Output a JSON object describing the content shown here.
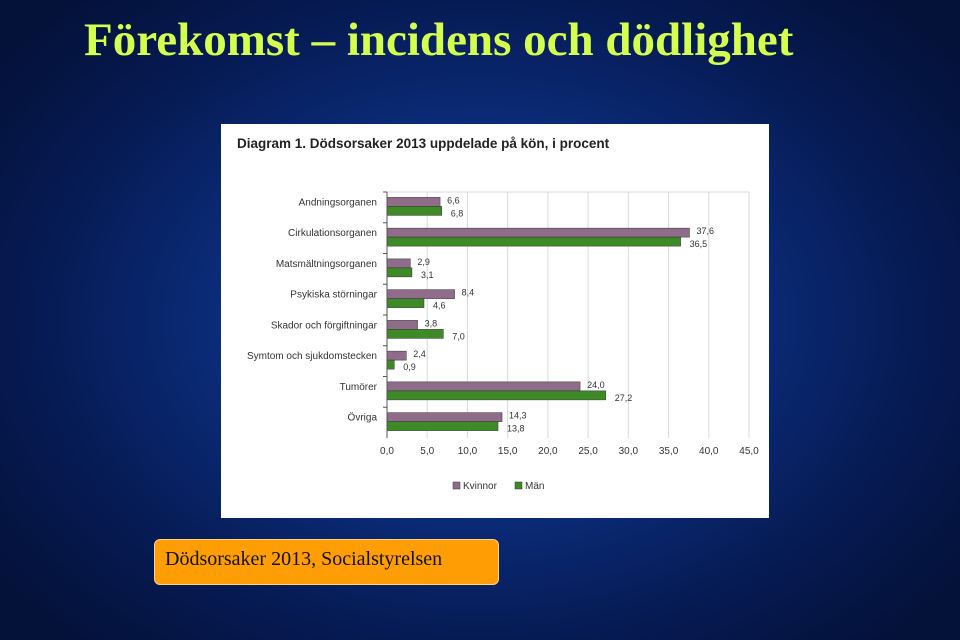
{
  "slide": {
    "title": "Förekomst – incidens och dödlighet",
    "source": "Dödsorsaker 2013, Socialstyrelsen"
  },
  "colors": {
    "title": "#d4ff4e",
    "kvinnor": "#8e6c8a",
    "man": "#3d8a27",
    "source_box": "#ff9d05"
  },
  "chart_data": {
    "type": "bar",
    "orientation": "horizontal",
    "title": "Diagram 1. Dödsorsaker 2013 uppdelade på kön, i procent",
    "categories": [
      "Andningsorganen",
      "Cirkulationsorganen",
      "Matsmältningsorganen",
      "Psykiska störningar",
      "Skador och förgiftningar",
      "Symtom och sjukdomstecken",
      "Tumörer",
      "Övriga"
    ],
    "series": [
      {
        "name": "Kvinnor",
        "values": [
          6.6,
          37.6,
          2.9,
          8.4,
          3.8,
          2.4,
          24.0,
          14.3
        ],
        "labels": [
          "6,6",
          "37,6",
          "2,9",
          "8,4",
          "3,8",
          "2,4",
          "24,0",
          "14,3"
        ]
      },
      {
        "name": "Män",
        "values": [
          6.8,
          36.5,
          3.1,
          4.6,
          7.0,
          0.9,
          27.2,
          13.8
        ],
        "labels": [
          "6,8",
          "36,5",
          "3,1",
          "4,6",
          "7,0",
          "0,9",
          "27,2",
          "13,8"
        ]
      }
    ],
    "xlim": [
      0,
      45
    ],
    "xticks": [
      "0,0",
      "5,0",
      "10,0",
      "15,0",
      "20,0",
      "25,0",
      "30,0",
      "35,0",
      "40,0",
      "45,0"
    ],
    "grid": "vertical",
    "legend": "bottom"
  }
}
